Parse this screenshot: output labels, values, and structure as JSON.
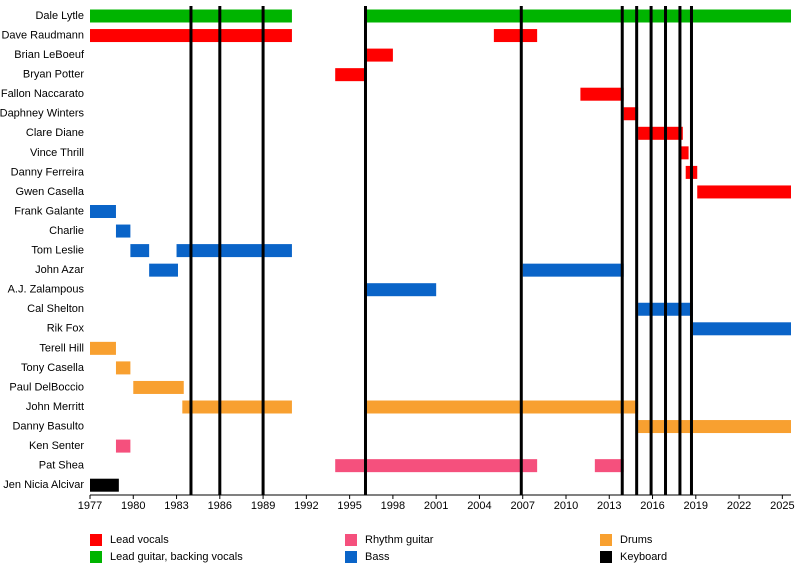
{
  "chart_data": {
    "type": "timeline",
    "categories": [
      "Dale Lytle",
      "Dave Raudmann",
      "Brian LeBoeuf",
      "Bryan Potter",
      "Fallon Naccarato",
      "Daphney Winters",
      "Clare Diane",
      "Vince Thrill",
      "Danny Ferreira",
      "Gwen Casella",
      "Frank Galante",
      "Charlie",
      "Tom Leslie",
      "John Azar",
      "A.J. Zalampous",
      "Cal Shelton",
      "Rik Fox",
      "Terell Hill",
      "Tony Casella",
      "Paul DelBoccio",
      "John Merritt",
      "Danny Basulto",
      "Ken Senter",
      "Pat Shea",
      "Jen Nicia Alcivar"
    ],
    "xlim": [
      1977,
      2025.6
    ],
    "xticks": [
      1977,
      1980,
      1983,
      1986,
      1989,
      1992,
      1995,
      1998,
      2001,
      2004,
      2007,
      2010,
      2013,
      2016,
      2019,
      2022,
      2025
    ],
    "events": [
      1984,
      1986,
      1989,
      1996.1,
      2006.9,
      2013.9,
      2014.9,
      2015.9,
      2016.9,
      2017.9,
      2018.7
    ],
    "series": [
      {
        "name": "Lead vocals",
        "color": "#ff0000",
        "bars": [
          {
            "row": 1,
            "start": 1977,
            "end": 1991
          },
          {
            "row": 1,
            "start": 2005,
            "end": 2008
          },
          {
            "row": 2,
            "start": 1996,
            "end": 1998
          },
          {
            "row": 3,
            "start": 1994,
            "end": 1996
          },
          {
            "row": 4,
            "start": 2011,
            "end": 2014
          },
          {
            "row": 5,
            "start": 2014,
            "end": 2015
          },
          {
            "row": 6,
            "start": 2015,
            "end": 2018.1
          },
          {
            "row": 7,
            "start": 2017.9,
            "end": 2018.5
          },
          {
            "row": 8,
            "start": 2018.3,
            "end": 2019.1
          },
          {
            "row": 9,
            "start": 2019.1,
            "end": 2025.6
          }
        ]
      },
      {
        "name": "Lead guitar, backing vocals",
        "color": "#00b400",
        "bars": [
          {
            "row": 0,
            "start": 1977,
            "end": 1991
          },
          {
            "row": 0,
            "start": 1996,
            "end": 2025.6
          }
        ]
      },
      {
        "name": "Rhythm guitar",
        "color": "#f5507d",
        "bars": [
          {
            "row": 22,
            "start": 1978.8,
            "end": 1979.8
          },
          {
            "row": 23,
            "start": 1994,
            "end": 2008
          },
          {
            "row": 23,
            "start": 2012,
            "end": 2014
          }
        ]
      },
      {
        "name": "Bass",
        "color": "#0a64c8",
        "bars": [
          {
            "row": 10,
            "start": 1977,
            "end": 1978.8
          },
          {
            "row": 11,
            "start": 1978.8,
            "end": 1979.8
          },
          {
            "row": 12,
            "start": 1979.8,
            "end": 1981.1
          },
          {
            "row": 12,
            "start": 1983,
            "end": 1991
          },
          {
            "row": 13,
            "start": 1981.1,
            "end": 1983.1
          },
          {
            "row": 13,
            "start": 2007,
            "end": 2014
          },
          {
            "row": 14,
            "start": 1996,
            "end": 2001
          },
          {
            "row": 15,
            "start": 2015,
            "end": 2018.8
          },
          {
            "row": 16,
            "start": 2018.8,
            "end": 2025.6
          }
        ]
      },
      {
        "name": "Drums",
        "color": "#f8a030",
        "bars": [
          {
            "row": 17,
            "start": 1977,
            "end": 1978.8
          },
          {
            "row": 18,
            "start": 1978.8,
            "end": 1979.8
          },
          {
            "row": 19,
            "start": 1980,
            "end": 1983.5
          },
          {
            "row": 20,
            "start": 1983.4,
            "end": 1991
          },
          {
            "row": 20,
            "start": 1996,
            "end": 2015
          },
          {
            "row": 21,
            "start": 2015,
            "end": 2025.6
          }
        ]
      },
      {
        "name": "Keyboard",
        "color": "#000000",
        "bars": [
          {
            "row": 24,
            "start": 1977,
            "end": 1979
          }
        ]
      }
    ]
  }
}
